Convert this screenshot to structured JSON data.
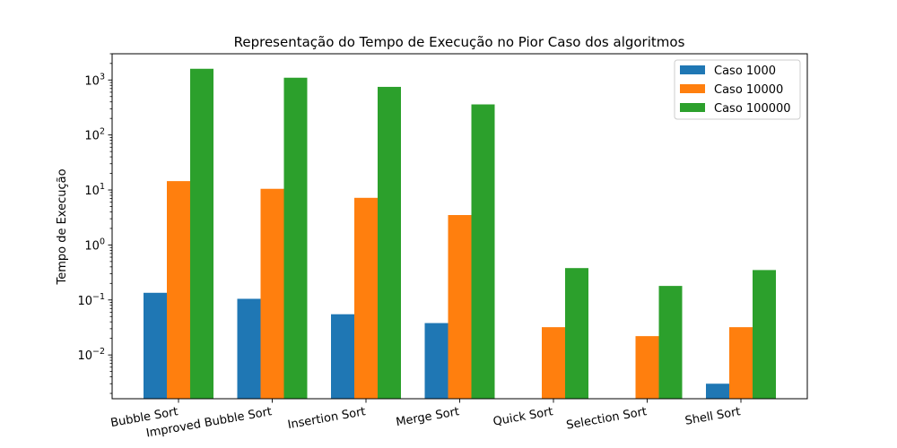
{
  "chart_data": {
    "type": "bar",
    "title": "Representação do Tempo de Execução no Pior Caso dos algoritmos",
    "xlabel": "",
    "ylabel": "Tempo de Execução",
    "yscale": "log",
    "ylim": [
      0.0016,
      3000
    ],
    "yticks": [
      {
        "value": 0.01,
        "base": "10",
        "exp": "−2"
      },
      {
        "value": 0.1,
        "base": "10",
        "exp": "−1"
      },
      {
        "value": 1,
        "base": "10",
        "exp": "0"
      },
      {
        "value": 10,
        "base": "10",
        "exp": "1"
      },
      {
        "value": 100,
        "base": "10",
        "exp": "2"
      },
      {
        "value": 1000,
        "base": "10",
        "exp": "3"
      }
    ],
    "categories": [
      "Bubble Sort",
      "Improved Bubble Sort",
      "Insertion Sort",
      "Merge Sort",
      "Quick Sort",
      "Selection Sort",
      "Shell Sort"
    ],
    "legend_position": "top-right",
    "grid": false,
    "series": [
      {
        "name": "Caso 1000",
        "color": "#1f77b4",
        "values": [
          0.135,
          0.105,
          0.055,
          0.038,
          null,
          null,
          0.003
        ]
      },
      {
        "name": "Caso 10000",
        "color": "#ff7f0e",
        "values": [
          14.5,
          10.5,
          7.2,
          3.5,
          0.032,
          0.022,
          0.032
        ]
      },
      {
        "name": "Caso 100000",
        "color": "#2ca02c",
        "values": [
          1600,
          1100,
          750,
          360,
          0.38,
          0.18,
          0.35
        ]
      }
    ]
  }
}
